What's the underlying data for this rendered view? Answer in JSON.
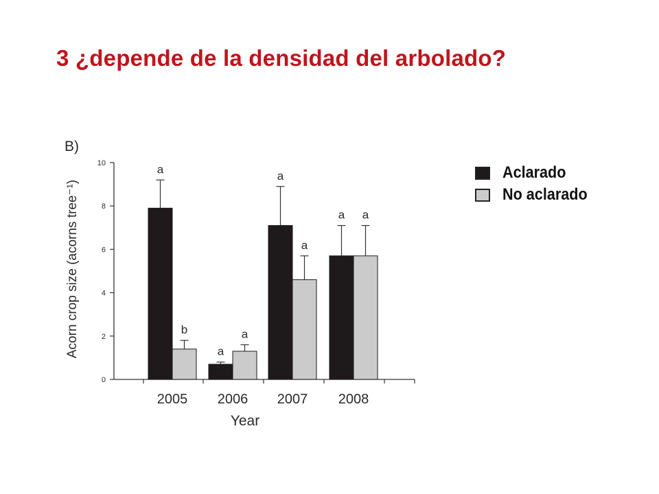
{
  "slide": {
    "title": "3 ¿depende de la densidad del arbolado?"
  },
  "legend": {
    "items": [
      {
        "label": "Aclarado",
        "color": "#1e1a1b"
      },
      {
        "label": "No aclarado",
        "color": "#cbcbcb"
      }
    ]
  },
  "chart_data": {
    "type": "bar",
    "panel_label": "B)",
    "categories": [
      "2005",
      "2006",
      "2007",
      "2008"
    ],
    "series": [
      {
        "name": "Aclarado",
        "color": "#1e1a1b",
        "values": [
          7.9,
          0.7,
          7.1,
          5.7
        ],
        "errors": [
          1.3,
          0.1,
          1.8,
          1.4
        ],
        "letters": [
          "a",
          "a",
          "a",
          "a"
        ]
      },
      {
        "name": "No aclarado",
        "color": "#cbcbcb",
        "values": [
          1.4,
          1.3,
          4.6,
          5.7
        ],
        "errors": [
          0.4,
          0.3,
          1.1,
          1.4
        ],
        "letters": [
          "b",
          "a",
          "a",
          "a"
        ]
      }
    ],
    "xlabel": "Year",
    "ylabel": "Acorn crop size (acorns tree⁻¹)",
    "ylim": [
      0,
      10
    ],
    "yticks": [
      "0",
      "2",
      "4",
      "6",
      "8",
      "10"
    ],
    "grid": false
  }
}
